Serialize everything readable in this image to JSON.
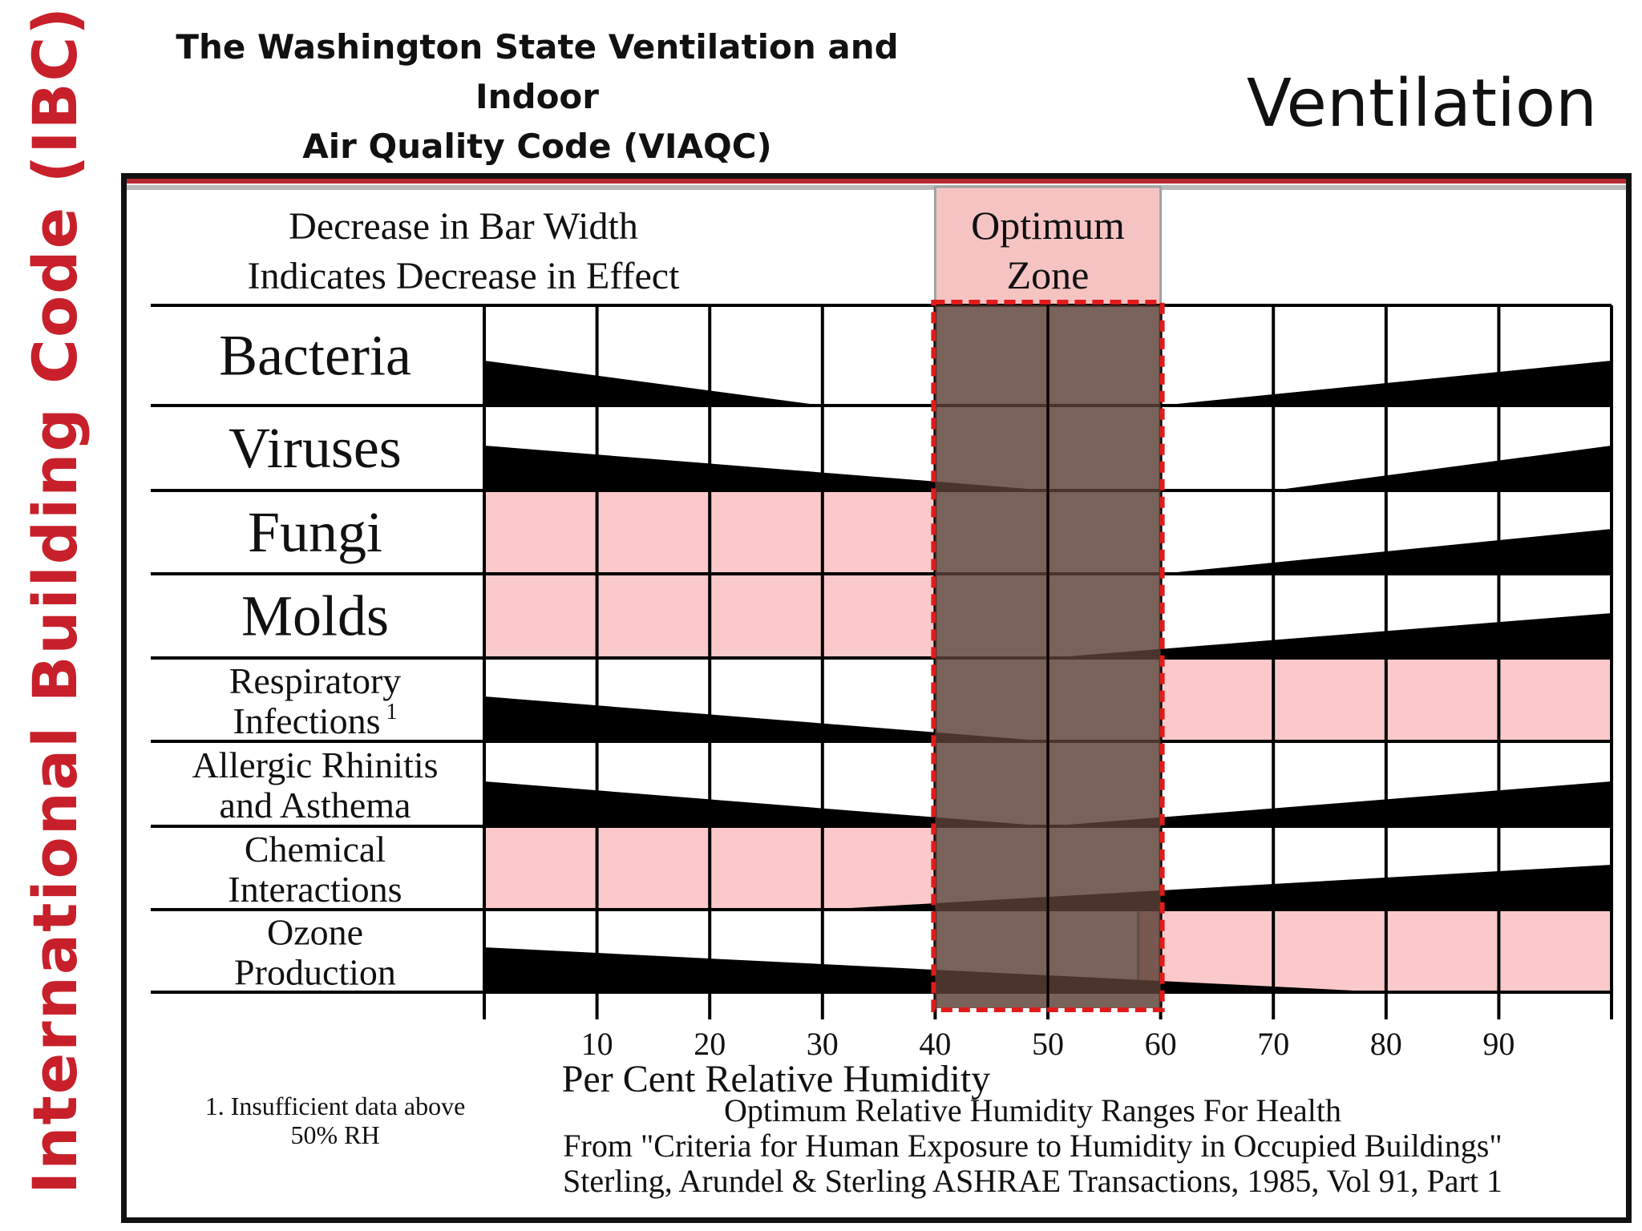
{
  "header": {
    "side_title": "International Building Code (IBC)",
    "viaqc_line1": "The Washington State Ventilation and Indoor",
    "viaqc_line2": "Air Quality Code (VIAQC)",
    "section_title": "Ventilation"
  },
  "colors": {
    "side_title": "#c8202a",
    "bar": "#000000",
    "optimum_zone_overlay": "#5a3f36",
    "optimum_zone_header": "#f6c3c3",
    "highlight_pink": "#fbc9c9",
    "dashed_border": "#e01b1b"
  },
  "chart_data": {
    "type": "bar",
    "description_line1": "Decrease in Bar Width",
    "description_line2": "Indicates Decrease in Effect",
    "optimum_zone": {
      "label_line1": "Optimum",
      "label_line2": "Zone",
      "range": [
        40,
        60
      ]
    },
    "xlabel": "Per Cent Relative Humidity",
    "xlim": [
      0,
      100
    ],
    "x_ticks": [
      10,
      20,
      30,
      40,
      50,
      60,
      70,
      80,
      90
    ],
    "categories": [
      {
        "lines": [
          "Bacteria"
        ],
        "size": "large"
      },
      {
        "lines": [
          "Viruses"
        ],
        "size": "large"
      },
      {
        "lines": [
          "Fungi"
        ],
        "size": "large"
      },
      {
        "lines": [
          "Molds"
        ],
        "size": "large"
      },
      {
        "lines": [
          "Respiratory",
          "Infections"
        ],
        "footnote_mark": "1",
        "size": "small"
      },
      {
        "lines": [
          "Allergic Rhinitis",
          "and Asthema"
        ],
        "size": "small"
      },
      {
        "lines": [
          "Chemical",
          "Interactions"
        ],
        "size": "small"
      },
      {
        "lines": [
          "Ozone",
          "Production"
        ],
        "size": "small"
      }
    ],
    "series": [
      {
        "left_bar": [
          0,
          1.0,
          30,
          0.0
        ],
        "right_bar": [
          60,
          0.0,
          100,
          1.0
        ]
      },
      {
        "left_bar": [
          0,
          1.0,
          50,
          0.0
        ],
        "right_bar": [
          70,
          0.0,
          100,
          1.0
        ]
      },
      {
        "left_bar": null,
        "right_bar": [
          60,
          0.0,
          100,
          1.0
        ]
      },
      {
        "left_bar": null,
        "right_bar": [
          50,
          0.0,
          100,
          1.0
        ]
      },
      {
        "left_bar": [
          0,
          1.0,
          50,
          0.0
        ],
        "right_bar": null
      },
      {
        "left_bar": [
          0,
          1.0,
          50,
          0.0
        ],
        "right_bar": [
          50,
          0.0,
          100,
          1.0
        ]
      },
      {
        "left_bar": null,
        "right_bar": [
          30,
          0.0,
          100,
          1.0
        ]
      },
      {
        "left_bar": [
          0,
          1.0,
          80,
          0.0
        ],
        "right_bar": null
      }
    ],
    "pink_highlights": [
      {
        "row_start": 2,
        "row_end": 3,
        "x_start": 0,
        "x_end": 40
      },
      {
        "row_start": 4,
        "row_end": 4,
        "x_start": 60,
        "x_end": 100
      },
      {
        "row_start": 6,
        "row_end": 6,
        "x_start": 0,
        "x_end": 40
      },
      {
        "row_start": 7,
        "row_end": 7,
        "x_start": 58,
        "x_end": 100
      }
    ],
    "footnote_line1": "1. Insufficient data above",
    "footnote_line2": "50% RH",
    "caption_line1": "Optimum Relative Humidity Ranges For Health",
    "caption_line2": "From \"Criteria for Human Exposure to Humidity in Occupied Buildings\"",
    "caption_line3": "Sterling, Arundel & Sterling    ASHRAE Transactions, 1985, Vol 91, Part 1"
  }
}
